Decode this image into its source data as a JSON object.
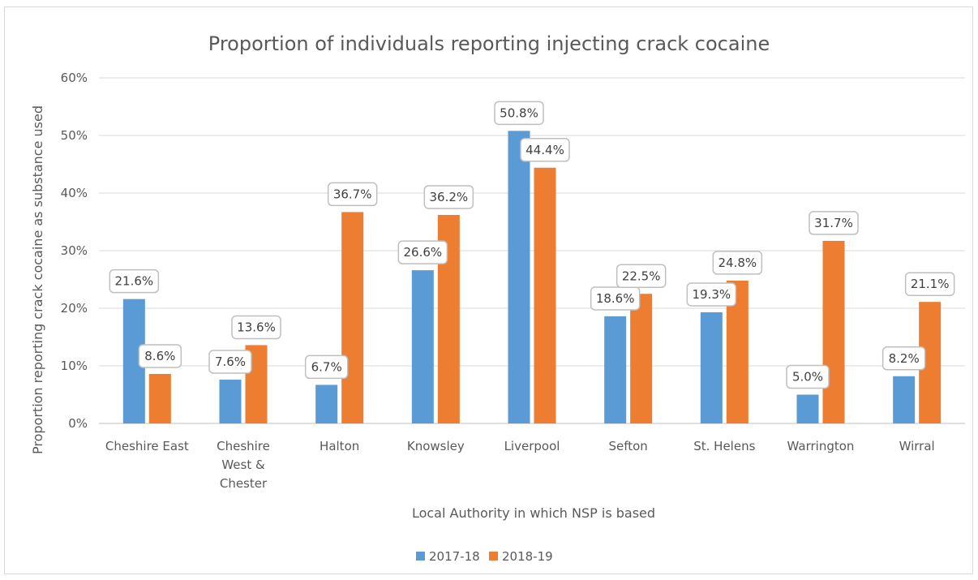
{
  "chart_data": {
    "type": "bar",
    "title": "Proportion of individuals reporting injecting crack cocaine",
    "xlabel": "Local Authority in which NSP is based",
    "ylabel": "Proportion reporting crack cocaine as substance used",
    "ylim": [
      0,
      60
    ],
    "yticks": [
      "0%",
      "10%",
      "20%",
      "30%",
      "40%",
      "50%",
      "60%"
    ],
    "grid": true,
    "legend_position": "bottom",
    "categories": [
      [
        "Cheshire East"
      ],
      [
        "Cheshire",
        "West &",
        "Chester"
      ],
      [
        "Halton"
      ],
      [
        "Knowsley"
      ],
      [
        "Liverpool"
      ],
      [
        "Sefton"
      ],
      [
        "St. Helens"
      ],
      [
        "Warrington"
      ],
      [
        "Wirral"
      ]
    ],
    "series": [
      {
        "name": "2017-18",
        "color": "#5b9bd5",
        "values": [
          21.6,
          7.6,
          6.7,
          26.6,
          50.8,
          18.6,
          19.3,
          5.0,
          8.2
        ],
        "labels": [
          "21.6%",
          "7.6%",
          "6.7%",
          "26.6%",
          "50.8%",
          "18.6%",
          "19.3%",
          "5.0%",
          "8.2%"
        ]
      },
      {
        "name": "2018-19",
        "color": "#ed7d31",
        "values": [
          8.6,
          13.6,
          36.7,
          36.2,
          44.4,
          22.5,
          24.8,
          31.7,
          21.1
        ],
        "labels": [
          "8.6%",
          "13.6%",
          "36.7%",
          "36.2%",
          "44.4%",
          "22.5%",
          "24.8%",
          "31.7%",
          "21.1%"
        ]
      }
    ]
  }
}
